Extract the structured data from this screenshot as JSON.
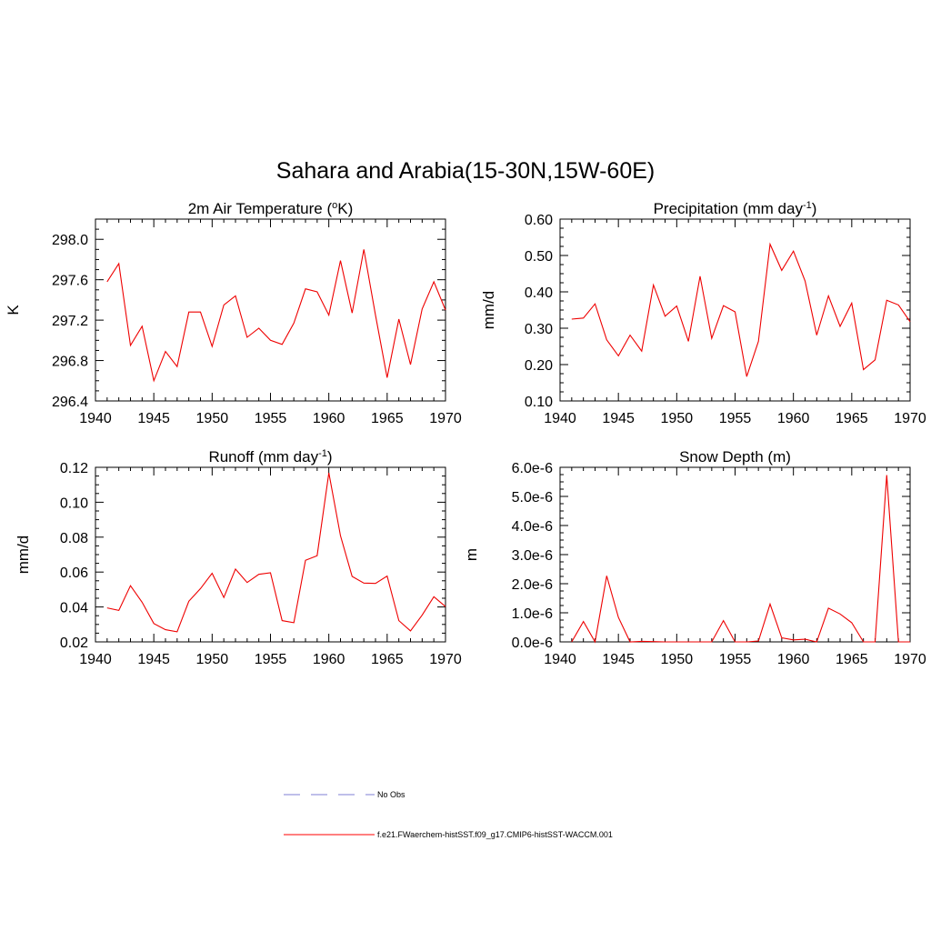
{
  "title": "Sahara and Arabia(15-30N,15W-60E)",
  "legend": [
    {
      "label": "No Obs",
      "color": "#9999dd",
      "style": "dashed"
    },
    {
      "label": "f.e21.FWaerchem-histSST.f09_g17.CMIP6-histSST-WACCM.001",
      "color": "#ff3333",
      "style": "solid"
    }
  ],
  "line_color": "#ee0000",
  "chart_data": [
    {
      "type": "line",
      "title": "2m Air Temperature (",
      "title_sup": "o",
      "title_after": "K)",
      "title_after_sup": "",
      "ylabel": "K",
      "xlim": [
        1940,
        1970
      ],
      "ylim": [
        296.4,
        298.2
      ],
      "xticks": [
        1940,
        1945,
        1950,
        1955,
        1960,
        1965,
        1970
      ],
      "xtick_labels": [
        "1940",
        "1945",
        "1950",
        "1955",
        "1960",
        "1965",
        "1970"
      ],
      "yticks": [
        296.4,
        296.8,
        297.2,
        297.6,
        298.0
      ],
      "ytick_labels": [
        "296.4",
        "296.8",
        "297.2",
        "297.6",
        "298.0"
      ],
      "x": [
        1941,
        1942,
        1943,
        1944,
        1945,
        1946,
        1947,
        1948,
        1949,
        1950,
        1951,
        1952,
        1953,
        1954,
        1955,
        1956,
        1957,
        1958,
        1959,
        1960,
        1961,
        1962,
        1963,
        1964,
        1965,
        1966,
        1967,
        1968,
        1969,
        1970
      ],
      "y": [
        297.58,
        297.76,
        296.95,
        297.14,
        296.6,
        296.89,
        296.74,
        297.28,
        297.28,
        296.94,
        297.35,
        297.44,
        297.03,
        297.12,
        297.0,
        296.96,
        297.17,
        297.51,
        297.48,
        297.25,
        297.79,
        297.27,
        297.9,
        297.25,
        296.63,
        297.21,
        296.76,
        297.31,
        297.58,
        297.3
      ]
    },
    {
      "type": "line",
      "title": "Precipitation (mm day",
      "title_sup": "-1",
      "title_after": ")",
      "title_after_sup": "",
      "ylabel": "mm/d",
      "xlim": [
        1940,
        1970
      ],
      "ylim": [
        0.1,
        0.6
      ],
      "xticks": [
        1940,
        1945,
        1950,
        1955,
        1960,
        1965,
        1970
      ],
      "xtick_labels": [
        "1940",
        "1945",
        "1950",
        "1955",
        "1960",
        "1965",
        "1970"
      ],
      "yticks": [
        0.1,
        0.2,
        0.3,
        0.4,
        0.5,
        0.6
      ],
      "ytick_labels": [
        "0.10",
        "0.20",
        "0.30",
        "0.40",
        "0.50",
        "0.60"
      ],
      "x": [
        1941,
        1942,
        1943,
        1944,
        1945,
        1946,
        1947,
        1948,
        1949,
        1950,
        1951,
        1952,
        1953,
        1954,
        1955,
        1956,
        1957,
        1958,
        1959,
        1960,
        1961,
        1962,
        1963,
        1964,
        1965,
        1966,
        1967,
        1968,
        1969,
        1970
      ],
      "y": [
        0.325,
        0.328,
        0.367,
        0.268,
        0.224,
        0.281,
        0.237,
        0.419,
        0.333,
        0.361,
        0.264,
        0.443,
        0.272,
        0.362,
        0.345,
        0.167,
        0.264,
        0.531,
        0.459,
        0.512,
        0.43,
        0.281,
        0.389,
        0.305,
        0.369,
        0.186,
        0.213,
        0.377,
        0.364,
        0.318
      ]
    },
    {
      "type": "line",
      "title": "Runoff (mm day",
      "title_sup": "-1",
      "title_after": ")",
      "title_after_sup": "",
      "ylabel": "mm/d",
      "xlim": [
        1940,
        1970
      ],
      "ylim": [
        0.02,
        0.12
      ],
      "xticks": [
        1940,
        1945,
        1950,
        1955,
        1960,
        1965,
        1970
      ],
      "xtick_labels": [
        "1940",
        "1945",
        "1950",
        "1955",
        "1960",
        "1965",
        "1970"
      ],
      "yticks": [
        0.02,
        0.04,
        0.06,
        0.08,
        0.1,
        0.12
      ],
      "ytick_labels": [
        "0.02",
        "0.04",
        "0.06",
        "0.08",
        "0.10",
        "0.12"
      ],
      "x": [
        1941,
        1942,
        1943,
        1944,
        1945,
        1946,
        1947,
        1948,
        1949,
        1950,
        1951,
        1952,
        1953,
        1954,
        1955,
        1956,
        1957,
        1958,
        1959,
        1960,
        1961,
        1962,
        1963,
        1964,
        1965,
        1966,
        1967,
        1968,
        1969,
        1970
      ],
      "y": [
        0.0395,
        0.038,
        0.0522,
        0.0427,
        0.0305,
        0.027,
        0.0258,
        0.0433,
        0.0505,
        0.0593,
        0.0454,
        0.0617,
        0.054,
        0.0587,
        0.0596,
        0.0322,
        0.031,
        0.0667,
        0.0694,
        0.1168,
        0.0808,
        0.0575,
        0.0537,
        0.0535,
        0.0577,
        0.0322,
        0.0263,
        0.0353,
        0.0459,
        0.0402
      ]
    },
    {
      "type": "line",
      "title": "Snow Depth (m)",
      "title_sup": "",
      "title_after": "",
      "title_after_sup": "",
      "ylabel": "m",
      "xlim": [
        1940,
        1970
      ],
      "ylim": [
        0.0,
        6e-06
      ],
      "xticks": [
        1940,
        1945,
        1950,
        1955,
        1960,
        1965,
        1970
      ],
      "xtick_labels": [
        "1940",
        "1945",
        "1950",
        "1955",
        "1960",
        "1965",
        "1970"
      ],
      "yticks": [
        0.0,
        1e-06,
        2e-06,
        3e-06,
        4e-06,
        5e-06,
        6e-06
      ],
      "ytick_labels": [
        "0.0e-6",
        "1.0e-6",
        "2.0e-6",
        "3.0e-6",
        "4.0e-6",
        "5.0e-6",
        "6.0e-6"
      ],
      "x": [
        1941,
        1942,
        1943,
        1944,
        1945,
        1946,
        1947,
        1948,
        1949,
        1950,
        1951,
        1952,
        1953,
        1954,
        1955,
        1956,
        1957,
        1958,
        1959,
        1960,
        1961,
        1962,
        1963,
        1964,
        1965,
        1966,
        1967,
        1968,
        1969,
        1970
      ],
      "y": [
        0.0,
        7e-07,
        0.0,
        2.27e-06,
        8.4e-07,
        0.0,
        2e-08,
        1e-08,
        0.0,
        0.0,
        0.0,
        0.0,
        0.0,
        7.3e-07,
        0.0,
        0.0,
        3e-08,
        1.3e-06,
        1.4e-07,
        7e-08,
        9e-08,
        0.0,
        1.16e-06,
        9.6e-07,
        6.6e-07,
        0.0,
        0.0,
        5.73e-06,
        0.0,
        0.0
      ]
    }
  ]
}
